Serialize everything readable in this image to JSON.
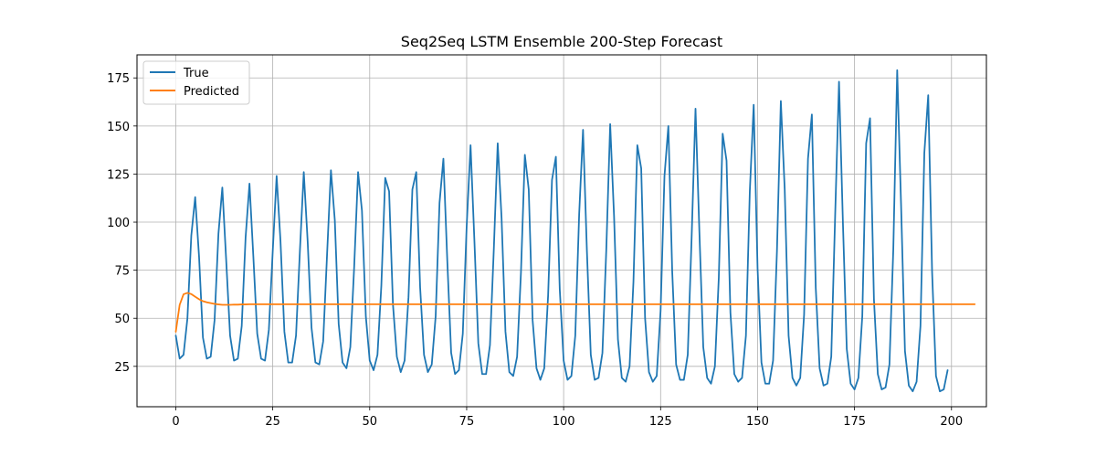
{
  "chart_data": {
    "type": "line",
    "title": "Seq2Seq LSTM Ensemble 200-Step Forecast",
    "xlabel": "",
    "ylabel": "",
    "xlim": [
      -10,
      209
    ],
    "ylim": [
      4,
      187
    ],
    "xticks": [
      0,
      25,
      50,
      75,
      100,
      125,
      150,
      175,
      200
    ],
    "yticks": [
      25,
      50,
      75,
      100,
      125,
      150,
      175
    ],
    "grid": true,
    "legend_position": "top-left",
    "colors": {
      "True": "#1f77b4",
      "Predicted": "#ff7f0e"
    },
    "series": [
      {
        "name": "True",
        "x_start": 0,
        "values": [
          41,
          29,
          31,
          50,
          93,
          113,
          82,
          40,
          29,
          30,
          49,
          94,
          118,
          80,
          41,
          28,
          29,
          46,
          92,
          120,
          82,
          42,
          29,
          28,
          44,
          85,
          124,
          90,
          43,
          27,
          27,
          41,
          85,
          126,
          90,
          45,
          27,
          26,
          38,
          83,
          127,
          101,
          47,
          27,
          24,
          35,
          77,
          126,
          106,
          51,
          28,
          23,
          31,
          67,
          123,
          116,
          57,
          30,
          22,
          28,
          61,
          117,
          126,
          66,
          31,
          22,
          26,
          51,
          110,
          133,
          80,
          32,
          21,
          23,
          42,
          98,
          140,
          90,
          37,
          21,
          21,
          36,
          86,
          141,
          102,
          43,
          22,
          20,
          30,
          74,
          135,
          117,
          49,
          24,
          18,
          24,
          62,
          122,
          134,
          65,
          28,
          18,
          20,
          41,
          104,
          148,
          85,
          31,
          18,
          19,
          32,
          86,
          151,
          103,
          39,
          19,
          17,
          25,
          69,
          140,
          128,
          50,
          22,
          17,
          20,
          54,
          124,
          150,
          74,
          26,
          18,
          18,
          31,
          92,
          159,
          95,
          35,
          19,
          16,
          25,
          71,
          146,
          132,
          53,
          21,
          17,
          19,
          41,
          116,
          161,
          76,
          27,
          16,
          16,
          28,
          85,
          163,
          117,
          41,
          19,
          15,
          19,
          52,
          133,
          156,
          66,
          24,
          15,
          16,
          30,
          103,
          173,
          100,
          34,
          16,
          13,
          19,
          51,
          141,
          154,
          60,
          21,
          13,
          14,
          26,
          86,
          179,
          109,
          33,
          15,
          12,
          17,
          46,
          136,
          166,
          74,
          20,
          12,
          13,
          23
        ]
      },
      {
        "name": "Predicted",
        "x_start": 0,
        "values": [
          43,
          57,
          62.5,
          63.2,
          62.6,
          61.2,
          59.9,
          58.9,
          58.3,
          57.9,
          57.5,
          57.2,
          57.0,
          57.0,
          57.0,
          57.1,
          57.1,
          57.2,
          57.2,
          57.3,
          57.3,
          57.3,
          57.3,
          57.3,
          57.3,
          57.3,
          57.3,
          57.3,
          57.3,
          57.3,
          57.3,
          57.3,
          57.3,
          57.3,
          57.3,
          57.3,
          57.3,
          57.3,
          57.3,
          57.3,
          57.3,
          57.3,
          57.3,
          57.3,
          57.3,
          57.3,
          57.3,
          57.3,
          57.3,
          57.3,
          57.3,
          57.3,
          57.3,
          57.3,
          57.3,
          57.3,
          57.3,
          57.3,
          57.3,
          57.3,
          57.3,
          57.3,
          57.3,
          57.3,
          57.3,
          57.3,
          57.3,
          57.3,
          57.3,
          57.3,
          57.3,
          57.3,
          57.3,
          57.3,
          57.3,
          57.3,
          57.3,
          57.3,
          57.3,
          57.3,
          57.3,
          57.3,
          57.3,
          57.3,
          57.3,
          57.3,
          57.3,
          57.3,
          57.3,
          57.3,
          57.3,
          57.3,
          57.3,
          57.3,
          57.3,
          57.3,
          57.3,
          57.3,
          57.3,
          57.3,
          57.3,
          57.3,
          57.3,
          57.3,
          57.3,
          57.3,
          57.3,
          57.3,
          57.3,
          57.3,
          57.3,
          57.3,
          57.3,
          57.3,
          57.3,
          57.3,
          57.3,
          57.3,
          57.3,
          57.3,
          57.3,
          57.3,
          57.3,
          57.3,
          57.3,
          57.3,
          57.3,
          57.3,
          57.3,
          57.3,
          57.3,
          57.3,
          57.3,
          57.3,
          57.3,
          57.3,
          57.3,
          57.3,
          57.3,
          57.3,
          57.3,
          57.3,
          57.3,
          57.3,
          57.3,
          57.3,
          57.3,
          57.3,
          57.3,
          57.3,
          57.3,
          57.3,
          57.3,
          57.3,
          57.3,
          57.3,
          57.3,
          57.3,
          57.3,
          57.3,
          57.3,
          57.3,
          57.3,
          57.3,
          57.3,
          57.3,
          57.3,
          57.3,
          57.3,
          57.3,
          57.3,
          57.3,
          57.3,
          57.3,
          57.3,
          57.3,
          57.3,
          57.3,
          57.3,
          57.3,
          57.3,
          57.3,
          57.3,
          57.3,
          57.3,
          57.3,
          57.3,
          57.3,
          57.3,
          57.3,
          57.3,
          57.3,
          57.3,
          57.3,
          57.3,
          57.3,
          57.3,
          57.3,
          57.3,
          57.3,
          57.3,
          57.3,
          57.3,
          57.3,
          57.3,
          57.3,
          57.3
        ]
      }
    ]
  }
}
